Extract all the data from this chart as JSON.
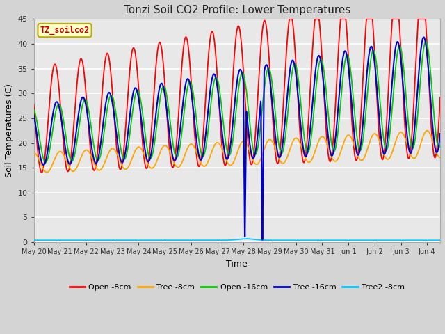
{
  "title": "Tonzi Soil CO2 Profile: Lower Temperatures",
  "xlabel": "Time",
  "ylabel": "Soil Temperatures (C)",
  "ylim": [
    0,
    45
  ],
  "label_box": "TZ_soilco2",
  "legend_entries": [
    {
      "label": "Open -8cm",
      "color": "#ff0000"
    },
    {
      "label": "Tree -8cm",
      "color": "#ffa500"
    },
    {
      "label": "Open -16cm",
      "color": "#00cc00"
    },
    {
      "label": "Tree -16cm",
      "color": "#0000cc"
    },
    {
      "label": "Tree2 -8cm",
      "color": "#00ccff"
    }
  ],
  "fig_bg": "#d4d4d4",
  "plot_bg": "#e8e8e8",
  "tick_labels": [
    "May 20",
    "May 21",
    "May 22",
    "May 23",
    "May 24",
    "May 25",
    "May 26",
    "May 27",
    "May 28",
    "May 29",
    "May 30",
    "May 31",
    "Jun 1",
    "Jun 2",
    "Jun 3",
    "Jun 4"
  ]
}
